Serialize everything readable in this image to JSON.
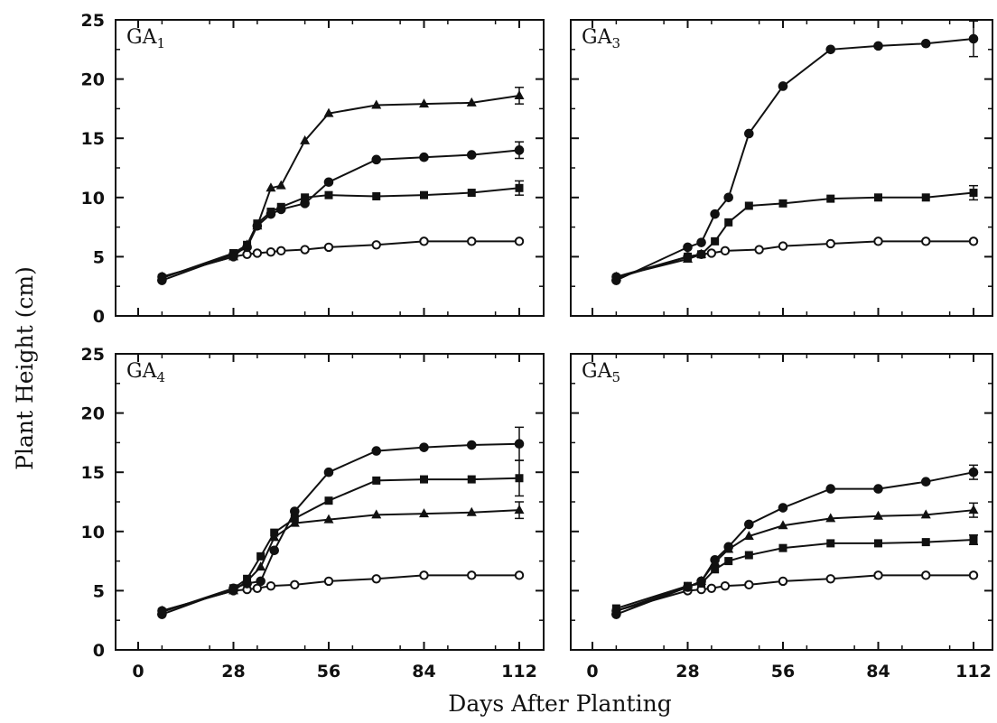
{
  "figure": {
    "ylabel": "Plant Height  (cm)",
    "xlabel": "Days After Planting"
  },
  "chart_data": [
    {
      "type": "line",
      "panel_label": "GA",
      "panel_sub": "1",
      "xticks": [
        0,
        28,
        56,
        84,
        112
      ],
      "yticks": [
        0,
        5,
        10,
        15,
        20,
        25
      ],
      "xlim": [
        0,
        112
      ],
      "ylim": [
        0,
        25
      ],
      "grid": false,
      "series": [
        {
          "marker": "open-circle",
          "x": [
            7,
            28,
            32,
            35,
            39,
            42,
            49,
            56,
            70,
            84,
            98,
            112
          ],
          "y": [
            3.3,
            5.0,
            5.2,
            5.3,
            5.4,
            5.5,
            5.6,
            5.8,
            6.0,
            6.3,
            6.3,
            6.3
          ]
        },
        {
          "marker": "filled-circle",
          "x": [
            7,
            28,
            32,
            35,
            39,
            42,
            49,
            56,
            70,
            84,
            98,
            112
          ],
          "y": [
            3.0,
            5.2,
            5.8,
            7.6,
            8.6,
            9.0,
            9.5,
            11.3,
            13.2,
            13.4,
            13.6,
            14.0
          ],
          "error": 0.7
        },
        {
          "marker": "filled-square",
          "x": [
            7,
            28,
            32,
            35,
            39,
            42,
            49,
            56,
            70,
            84,
            98,
            112
          ],
          "y": [
            3.2,
            5.3,
            6.0,
            7.8,
            8.8,
            9.2,
            10.0,
            10.2,
            10.1,
            10.2,
            10.4,
            10.8
          ],
          "error": 0.6
        },
        {
          "marker": "filled-triangle",
          "x": [
            7,
            28,
            32,
            35,
            39,
            42,
            49,
            56,
            70,
            84,
            98,
            112
          ],
          "y": [
            3.3,
            5.0,
            6.0,
            7.6,
            10.8,
            11.0,
            14.8,
            17.1,
            17.8,
            17.9,
            18.0,
            18.6
          ],
          "error": 0.7
        }
      ]
    },
    {
      "type": "line",
      "panel_label": "GA",
      "panel_sub": "3",
      "xticks": [
        0,
        28,
        56,
        84,
        112
      ],
      "yticks": [
        0,
        5,
        10,
        15,
        20,
        25
      ],
      "xlim": [
        0,
        112
      ],
      "ylim": [
        0,
        25
      ],
      "grid": false,
      "series": [
        {
          "marker": "open-circle",
          "x": [
            7,
            28,
            32,
            35,
            39,
            49,
            56,
            70,
            84,
            98,
            112
          ],
          "y": [
            3.3,
            5.0,
            5.2,
            5.3,
            5.5,
            5.6,
            5.9,
            6.1,
            6.3,
            6.3,
            6.3
          ]
        },
        {
          "marker": "filled-triangle",
          "x": [
            7,
            28,
            32
          ],
          "y": [
            3.3,
            4.8,
            5.2
          ]
        },
        {
          "marker": "filled-circle",
          "x": [
            7,
            28,
            32,
            36,
            40,
            46,
            56,
            70,
            84,
            98,
            112
          ],
          "y": [
            3.0,
            5.8,
            6.2,
            8.6,
            10.0,
            15.4,
            19.4,
            22.5,
            22.8,
            23.0,
            23.4
          ],
          "error": 1.5
        },
        {
          "marker": "filled-square",
          "x": [
            7,
            28,
            32,
            36,
            40,
            46,
            56,
            70,
            84,
            98,
            112
          ],
          "y": [
            3.2,
            5.0,
            5.2,
            6.3,
            7.9,
            9.3,
            9.5,
            9.9,
            10.0,
            10.0,
            10.4
          ],
          "error": 0.6
        }
      ]
    },
    {
      "type": "line",
      "panel_label": "GA",
      "panel_sub": "4",
      "xticks": [
        0,
        28,
        56,
        84,
        112
      ],
      "yticks": [
        0,
        5,
        10,
        15,
        20,
        25
      ],
      "xlim": [
        0,
        112
      ],
      "ylim": [
        0,
        25
      ],
      "grid": false,
      "series": [
        {
          "marker": "open-circle",
          "x": [
            7,
            28,
            32,
            35,
            39,
            46,
            56,
            70,
            84,
            98,
            112
          ],
          "y": [
            3.3,
            5.0,
            5.1,
            5.2,
            5.4,
            5.5,
            5.8,
            6.0,
            6.3,
            6.3,
            6.3
          ]
        },
        {
          "marker": "filled-circle",
          "x": [
            7,
            28,
            32,
            36,
            40,
            46,
            56,
            70,
            84,
            98,
            112
          ],
          "y": [
            3.0,
            5.2,
            5.6,
            5.8,
            8.4,
            11.7,
            15.0,
            16.8,
            17.1,
            17.3,
            17.4
          ],
          "error": 1.4
        },
        {
          "marker": "filled-square",
          "x": [
            7,
            28,
            32,
            36,
            40,
            46,
            56,
            70,
            84,
            98,
            112
          ],
          "y": [
            3.2,
            5.2,
            6.0,
            7.9,
            9.9,
            11.1,
            12.6,
            14.3,
            14.4,
            14.4,
            14.5
          ],
          "error": 1.5
        },
        {
          "marker": "filled-triangle",
          "x": [
            7,
            28,
            32,
            36,
            40,
            46,
            56,
            70,
            84,
            98,
            112
          ],
          "y": [
            3.3,
            5.0,
            5.8,
            7.0,
            9.5,
            10.7,
            11.0,
            11.4,
            11.5,
            11.6,
            11.8
          ],
          "error": 0.7
        }
      ]
    },
    {
      "type": "line",
      "panel_label": "GA",
      "panel_sub": "5",
      "xticks": [
        0,
        28,
        56,
        84,
        112
      ],
      "yticks": [
        0,
        5,
        10,
        15,
        20,
        25
      ],
      "xlim": [
        0,
        112
      ],
      "ylim": [
        0,
        25
      ],
      "grid": false,
      "series": [
        {
          "marker": "open-circle",
          "x": [
            7,
            28,
            32,
            35,
            39,
            46,
            56,
            70,
            84,
            98,
            112
          ],
          "y": [
            3.3,
            5.0,
            5.1,
            5.2,
            5.4,
            5.5,
            5.8,
            6.0,
            6.3,
            6.3,
            6.3
          ]
        },
        {
          "marker": "filled-circle",
          "x": [
            7,
            28,
            32,
            36,
            40,
            46,
            56,
            70,
            84,
            98,
            112
          ],
          "y": [
            3.0,
            5.3,
            5.8,
            7.6,
            8.7,
            10.6,
            12.0,
            13.6,
            13.6,
            14.2,
            15.0
          ],
          "error": 0.6
        },
        {
          "marker": "filled-triangle",
          "x": [
            7,
            28,
            32,
            36,
            40,
            46,
            56,
            70,
            84,
            98,
            112
          ],
          "y": [
            3.3,
            5.3,
            5.8,
            7.4,
            8.5,
            9.6,
            10.5,
            11.1,
            11.3,
            11.4,
            11.8
          ],
          "error": 0.6
        },
        {
          "marker": "filled-square",
          "x": [
            7,
            28,
            32,
            36,
            40,
            46,
            56,
            70,
            84,
            98,
            112
          ],
          "y": [
            3.5,
            5.4,
            5.6,
            6.8,
            7.5,
            8.0,
            8.6,
            9.0,
            9.0,
            9.1,
            9.3
          ],
          "error": 0.4
        }
      ]
    }
  ]
}
